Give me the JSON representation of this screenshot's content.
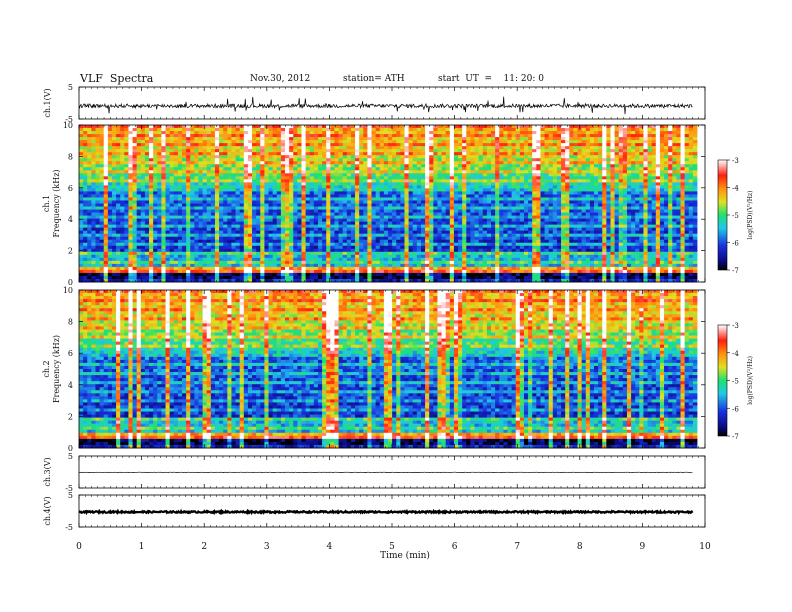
{
  "header": {
    "title": "VLF  Spectra",
    "date": "Nov.30, 2012",
    "station": "station= ATH",
    "start": "start  UT  =    11: 20: 0"
  },
  "chart_data": [
    {
      "type": "line",
      "panel": "ch1-waveform",
      "ylabel": "ch.1(V)",
      "yticks": [
        "5",
        "-5"
      ],
      "ylim": [
        -5,
        5
      ],
      "xlim": [
        0,
        10
      ],
      "baseline": -0.9,
      "noise_amplitude": 0.6,
      "data_end_min": 9.8
    },
    {
      "type": "heatmap",
      "panel": "ch1-spectrogram",
      "ylabel_channel": "ch.1",
      "ylabel": "Frequency (kHz)",
      "yticks": [
        "0",
        "2",
        "4",
        "6",
        "8",
        "10"
      ],
      "ylim": [
        0,
        10
      ],
      "xlim": [
        0,
        10
      ],
      "colorbar_label": "log(PSD)(V²/Hz)",
      "colorbar_ticks": [
        "-3",
        "-4",
        "-5",
        "-6",
        "-7"
      ],
      "colorbar_range": [
        -7,
        -3
      ]
    },
    {
      "type": "heatmap",
      "panel": "ch2-spectrogram",
      "ylabel_channel": "ch.2",
      "ylabel": "Frequency (kHz)",
      "yticks": [
        "0",
        "2",
        "4",
        "6",
        "8",
        "10"
      ],
      "ylim": [
        0,
        10
      ],
      "xlim": [
        0,
        10
      ],
      "colorbar_label": "log(PSD)(V²/Hz)",
      "colorbar_ticks": [
        "-3",
        "-4",
        "-5",
        "-6",
        "-7"
      ],
      "colorbar_range": [
        -7,
        -3
      ]
    },
    {
      "type": "line",
      "panel": "ch3-waveform",
      "ylabel": "ch.3(V)",
      "yticks": [
        "5",
        "-5"
      ],
      "ylim": [
        -5,
        5
      ],
      "xlim": [
        0,
        10
      ],
      "baseline": -0.1,
      "noise_amplitude": 0.05,
      "data_end_min": 9.8
    },
    {
      "type": "line",
      "panel": "ch4-waveform",
      "ylabel": "ch.4(V)",
      "yticks": [
        "5",
        "-5"
      ],
      "ylim": [
        -5,
        5
      ],
      "xlim": [
        0,
        10
      ],
      "baseline": -0.3,
      "noise_amplitude": 0.25,
      "data_end_min": 9.8
    }
  ],
  "x_axis": {
    "label": "Time  (min)",
    "ticks": [
      "0",
      "1",
      "2",
      "3",
      "4",
      "5",
      "6",
      "7",
      "8",
      "9",
      "10"
    ]
  }
}
